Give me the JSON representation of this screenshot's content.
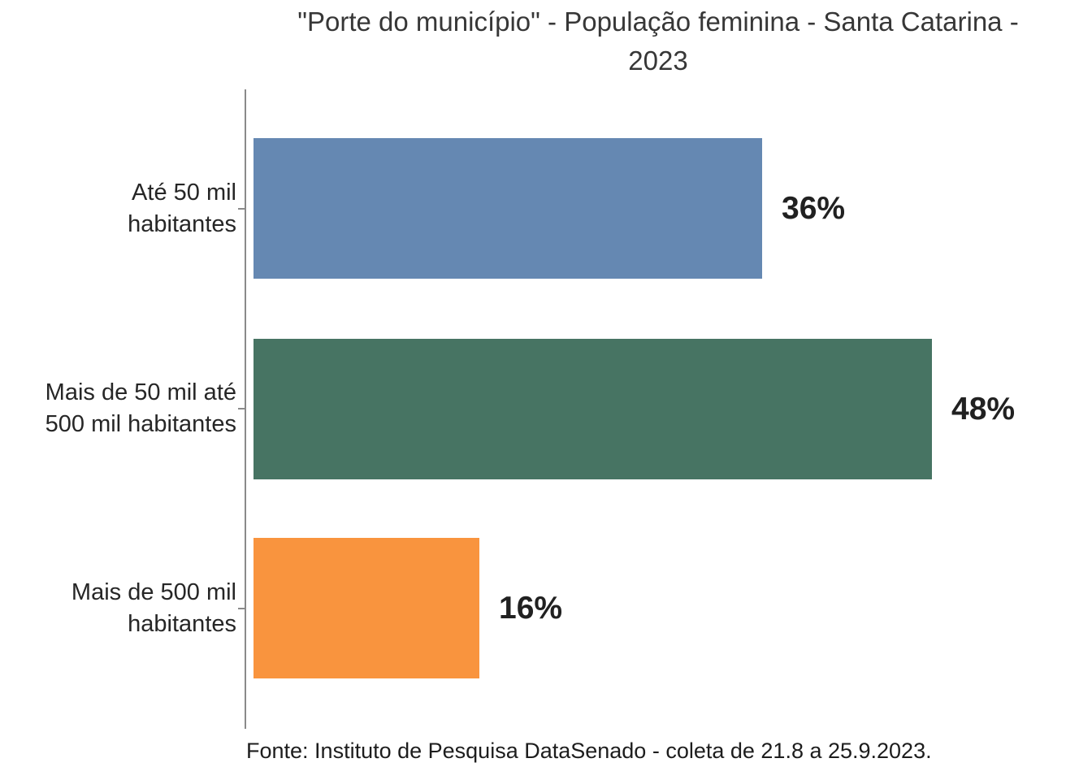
{
  "chart_data": {
    "type": "bar",
    "orientation": "horizontal",
    "title": "\"Porte do município\" - População feminina - Santa Catarina - 2023",
    "categories": [
      "Até 50 mil habitantes",
      "Mais de 50 mil até 500 mil habitantes",
      "Mais de 500 mil habitantes"
    ],
    "values": [
      36,
      48,
      16
    ],
    "unit": "%",
    "data_labels": [
      "36%",
      "48%",
      "16%"
    ],
    "colors": [
      "#6588B2",
      "#477463",
      "#F9943E"
    ],
    "xlabel": "",
    "ylabel": "",
    "xlim": [
      0,
      59
    ],
    "grid": false,
    "legend": false,
    "source": "Fonte: Instituto de Pesquisa DataSenado - coleta de 21.8 a 25.9.2023."
  },
  "title": {
    "line1": "\"Porte do município\" - População feminina - Santa Catarina -",
    "line2": "2023"
  },
  "bars": [
    {
      "label_line1": "Até 50 mil",
      "label_line2": "habitantes",
      "value": 36,
      "value_label": "36%",
      "color": "#6588B2"
    },
    {
      "label_line1": "Mais de 50 mil até",
      "label_line2": "500 mil habitantes",
      "value": 48,
      "value_label": "48%",
      "color": "#477463"
    },
    {
      "label_line1": "Mais de 500 mil",
      "label_line2": "habitantes",
      "value": 16,
      "value_label": "16%",
      "color": "#F9943E"
    }
  ],
  "footer": {
    "source": "Fonte: Instituto de Pesquisa DataSenado - coleta de 21.8 a 25.9.2023."
  },
  "style": {
    "axis_color": "#8A8A8A",
    "label_color": "#262626",
    "value_color": "#212121",
    "title_color": "#373737"
  }
}
